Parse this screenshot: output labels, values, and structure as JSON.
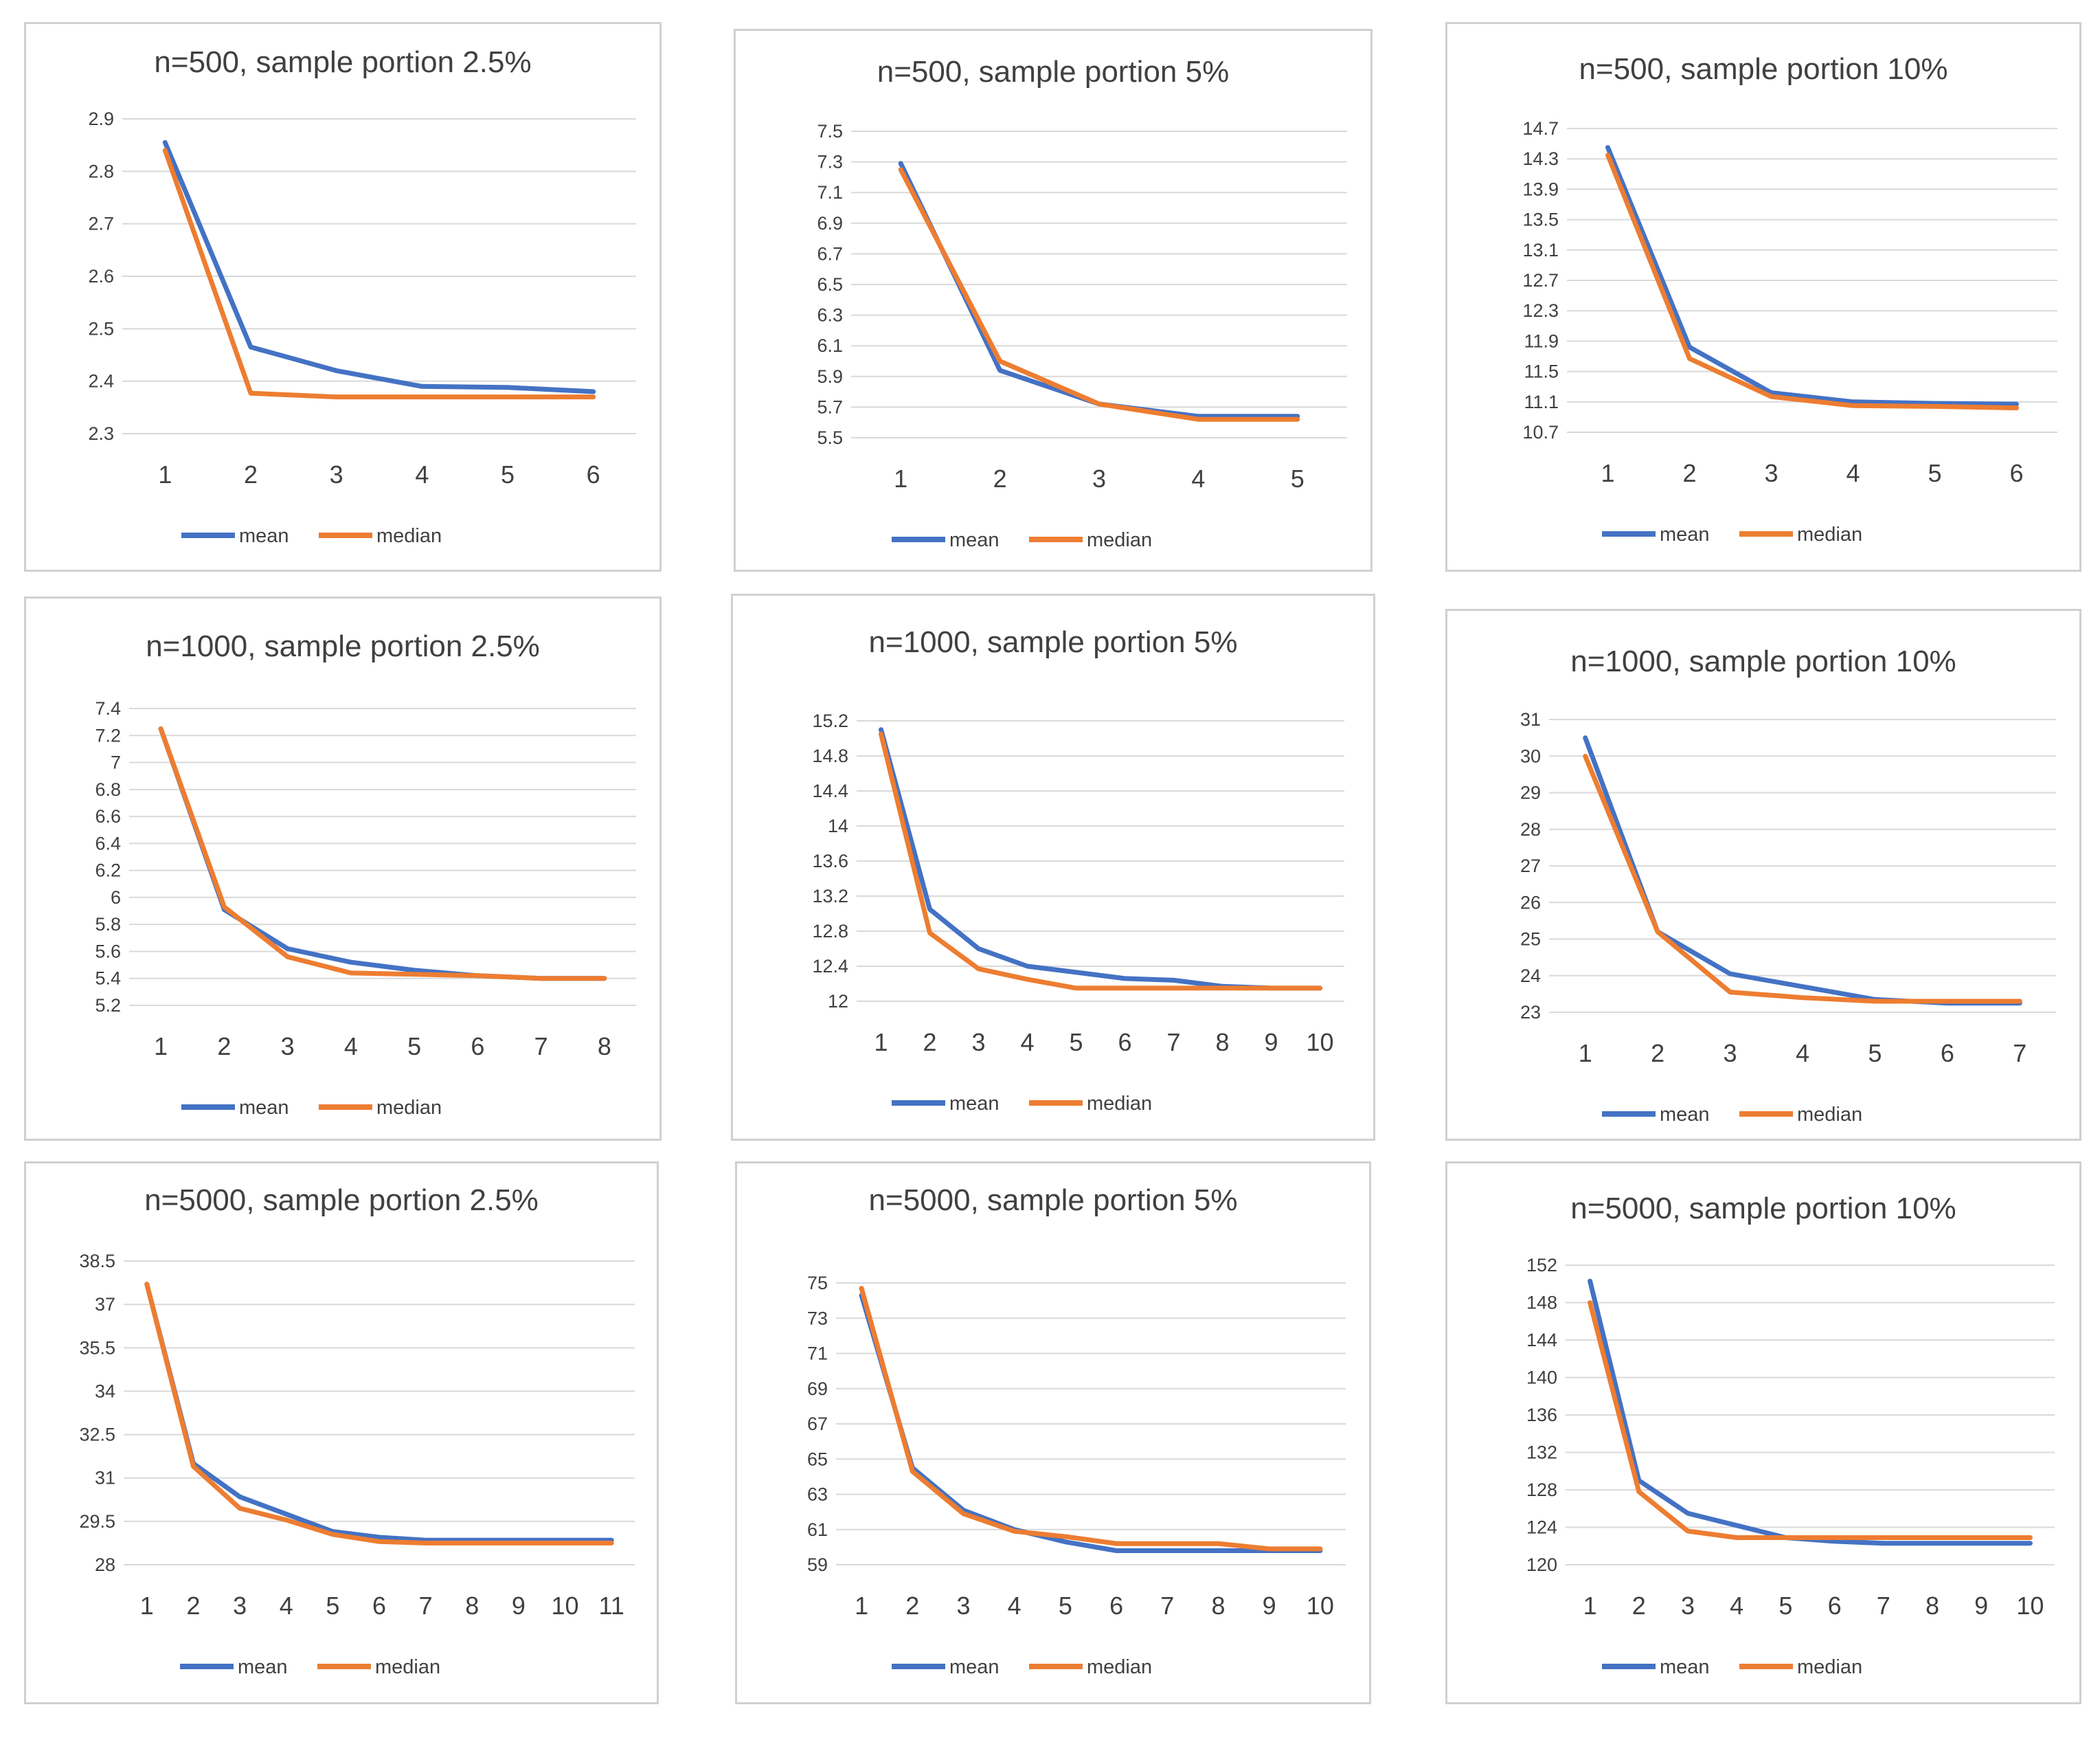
{
  "colors": {
    "mean": "#4472c4",
    "median": "#ed7d31",
    "grid": "#d9d9d9",
    "text": "#404040",
    "border": "#d0d0d0"
  },
  "legend": {
    "mean": "mean",
    "median": "median"
  },
  "chart_data": [
    {
      "type": "line",
      "title": "n=500, sample portion 2.5%",
      "categories": [
        "1",
        "2",
        "3",
        "4",
        "5",
        "6"
      ],
      "y_ticks": [
        "2.3",
        "2.4",
        "2.5",
        "2.6",
        "2.7",
        "2.8",
        "2.9"
      ],
      "ylim": [
        2.3,
        2.9
      ],
      "series": [
        {
          "name": "mean",
          "values": [
            2.855,
            2.465,
            2.42,
            2.39,
            2.388,
            2.38
          ]
        },
        {
          "name": "median",
          "values": [
            2.84,
            2.377,
            2.37,
            2.37,
            2.37,
            2.37
          ]
        }
      ],
      "legend": "bottom",
      "grid": true
    },
    {
      "type": "line",
      "title": "n=500, sample portion 5%",
      "categories": [
        "1",
        "2",
        "3",
        "4",
        "5"
      ],
      "y_ticks": [
        "5.5",
        "5.7",
        "5.9",
        "6.1",
        "6.3",
        "6.5",
        "6.7",
        "6.9",
        "7.1",
        "7.3",
        "7.5"
      ],
      "ylim": [
        5.5,
        7.5
      ],
      "series": [
        {
          "name": "mean",
          "values": [
            7.29,
            5.94,
            5.72,
            5.64,
            5.64
          ]
        },
        {
          "name": "median",
          "values": [
            7.25,
            6.0,
            5.72,
            5.62,
            5.62
          ]
        }
      ],
      "legend": "bottom",
      "grid": true
    },
    {
      "type": "line",
      "title": "n=500, sample portion 10%",
      "categories": [
        "1",
        "2",
        "3",
        "4",
        "5",
        "6"
      ],
      "y_ticks": [
        "10.7",
        "11.1",
        "11.5",
        "11.9",
        "12.3",
        "12.7",
        "13.1",
        "13.5",
        "13.9",
        "14.3",
        "14.7"
      ],
      "ylim": [
        10.7,
        14.7
      ],
      "series": [
        {
          "name": "mean",
          "values": [
            14.45,
            11.82,
            11.22,
            11.1,
            11.08,
            11.07
          ]
        },
        {
          "name": "median",
          "values": [
            14.35,
            11.67,
            11.17,
            11.05,
            11.04,
            11.02
          ]
        }
      ],
      "legend": "bottom",
      "grid": true
    },
    {
      "type": "line",
      "title": "n=1000, sample portion 2.5%",
      "categories": [
        "1",
        "2",
        "3",
        "4",
        "5",
        "6",
        "7",
        "8"
      ],
      "y_ticks": [
        "5.2",
        "5.4",
        "5.6",
        "5.8",
        "6",
        "6.2",
        "6.4",
        "6.6",
        "6.8",
        "7",
        "7.2",
        "7.4"
      ],
      "ylim": [
        5.2,
        7.4
      ],
      "series": [
        {
          "name": "mean",
          "values": [
            7.25,
            5.91,
            5.62,
            5.52,
            5.46,
            5.42,
            5.4,
            5.4
          ]
        },
        {
          "name": "median",
          "values": [
            7.25,
            5.93,
            5.56,
            5.44,
            5.43,
            5.42,
            5.4,
            5.4
          ]
        }
      ],
      "legend": "bottom",
      "grid": true
    },
    {
      "type": "line",
      "title": "n=1000, sample portion 5%",
      "categories": [
        "1",
        "2",
        "3",
        "4",
        "5",
        "6",
        "7",
        "8",
        "9",
        "10"
      ],
      "y_ticks": [
        "12",
        "12.4",
        "12.8",
        "13.2",
        "13.6",
        "14",
        "14.4",
        "14.8",
        "15.2"
      ],
      "ylim": [
        12,
        15.2
      ],
      "series": [
        {
          "name": "mean",
          "values": [
            15.1,
            13.05,
            12.6,
            12.4,
            12.33,
            12.26,
            12.24,
            12.17,
            12.15,
            12.15
          ]
        },
        {
          "name": "median",
          "values": [
            15.05,
            12.78,
            12.37,
            12.25,
            12.15,
            12.15,
            12.15,
            12.15,
            12.15,
            12.15
          ]
        }
      ],
      "legend": "bottom",
      "grid": true
    },
    {
      "type": "line",
      "title": "n=1000, sample portion 10%",
      "categories": [
        "1",
        "2",
        "3",
        "4",
        "5",
        "6",
        "7"
      ],
      "y_ticks": [
        "23",
        "24",
        "25",
        "26",
        "27",
        "28",
        "29",
        "30",
        "31"
      ],
      "ylim": [
        23,
        31
      ],
      "series": [
        {
          "name": "mean",
          "values": [
            30.5,
            25.2,
            24.05,
            23.7,
            23.35,
            23.25,
            23.25
          ]
        },
        {
          "name": "median",
          "values": [
            30.0,
            25.2,
            23.55,
            23.4,
            23.3,
            23.3,
            23.3
          ]
        }
      ],
      "legend": "bottom",
      "grid": true
    },
    {
      "type": "line",
      "title": "n=5000, sample portion 2.5%",
      "categories": [
        "1",
        "2",
        "3",
        "4",
        "5",
        "6",
        "7",
        "8",
        "9",
        "10",
        "11"
      ],
      "y_ticks": [
        "28",
        "29.5",
        "31",
        "32.5",
        "34",
        "35.5",
        "37",
        "38.5"
      ],
      "ylim": [
        28,
        38.5
      ],
      "series": [
        {
          "name": "mean",
          "values": [
            37.7,
            31.5,
            30.35,
            29.75,
            29.15,
            28.95,
            28.85,
            28.85,
            28.85,
            28.85,
            28.85
          ]
        },
        {
          "name": "median",
          "values": [
            37.7,
            31.4,
            29.95,
            29.55,
            29.05,
            28.8,
            28.75,
            28.75,
            28.75,
            28.75,
            28.75
          ]
        }
      ],
      "legend": "bottom",
      "grid": true
    },
    {
      "type": "line",
      "title": "n=5000, sample portion 5%",
      "categories": [
        "1",
        "2",
        "3",
        "4",
        "5",
        "6",
        "7",
        "8",
        "9",
        "10"
      ],
      "y_ticks": [
        "59",
        "61",
        "63",
        "65",
        "67",
        "69",
        "71",
        "73",
        "75"
      ],
      "ylim": [
        59,
        75
      ],
      "series": [
        {
          "name": "mean",
          "values": [
            74.3,
            64.5,
            62.1,
            61.0,
            60.3,
            59.8,
            59.8,
            59.8,
            59.8,
            59.8
          ]
        },
        {
          "name": "median",
          "values": [
            74.7,
            64.3,
            61.9,
            60.9,
            60.6,
            60.2,
            60.2,
            60.2,
            59.9,
            59.9
          ]
        }
      ],
      "legend": "bottom",
      "grid": true
    },
    {
      "type": "line",
      "title": "n=5000, sample portion 10%",
      "categories": [
        "1",
        "2",
        "3",
        "4",
        "5",
        "6",
        "7",
        "8",
        "9",
        "10"
      ],
      "y_ticks": [
        "120",
        "124",
        "128",
        "132",
        "136",
        "140",
        "144",
        "148",
        "152"
      ],
      "ylim": [
        120,
        152
      ],
      "series": [
        {
          "name": "mean",
          "values": [
            150.3,
            129.0,
            125.5,
            124.2,
            122.9,
            122.5,
            122.3,
            122.3,
            122.3,
            122.3
          ]
        },
        {
          "name": "median",
          "values": [
            148.0,
            127.8,
            123.6,
            122.9,
            122.9,
            122.9,
            122.9,
            122.9,
            122.9,
            122.9
          ]
        }
      ],
      "legend": "bottom",
      "grid": true
    }
  ]
}
